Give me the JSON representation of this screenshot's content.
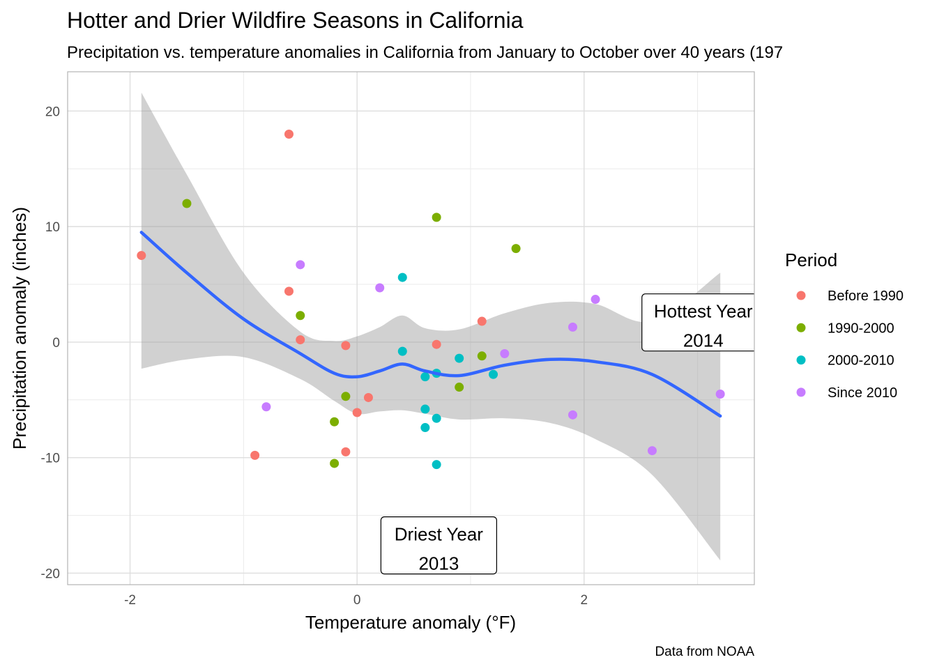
{
  "chart_data": {
    "type": "scatter",
    "title": "Hotter and Drier Wildfire Seasons in California",
    "subtitle": "Precipitation vs. temperature anomalies in California from January to October over 40 years (197",
    "xlabel": "Temperature anomaly (°F)",
    "ylabel": "Precipitation anomaly (inches)",
    "caption": "Data from NOAA",
    "xlim": [
      -2.55,
      3.5
    ],
    "ylim": [
      -21.0,
      23.4
    ],
    "x_ticks": [
      -2,
      0,
      2
    ],
    "y_ticks": [
      -20,
      -10,
      0,
      10,
      20
    ],
    "grid": true,
    "legend": {
      "title": "Period",
      "position": "right",
      "entries": [
        {
          "label": "Before 1990",
          "color": "#F8766D"
        },
        {
          "label": "1990-2000",
          "color": "#7CAE00"
        },
        {
          "label": "2000-2010",
          "color": "#00BFC4"
        },
        {
          "label": "Since 2010",
          "color": "#C77CFF"
        }
      ]
    },
    "series": [
      {
        "name": "Before 1990",
        "color": "#F8766D",
        "points": [
          [
            -1.9,
            7.5
          ],
          [
            -0.6,
            18.0
          ],
          [
            -0.6,
            4.4
          ],
          [
            -0.5,
            0.2
          ],
          [
            -0.1,
            -0.3
          ],
          [
            -0.9,
            -9.8
          ],
          [
            -0.1,
            -9.5
          ],
          [
            0.0,
            -6.1
          ],
          [
            0.1,
            -4.8
          ],
          [
            0.7,
            -0.2
          ],
          [
            1.1,
            1.8
          ]
        ]
      },
      {
        "name": "1990-2000",
        "color": "#7CAE00",
        "points": [
          [
            -1.5,
            12.0
          ],
          [
            -0.5,
            2.3
          ],
          [
            -0.1,
            -4.7
          ],
          [
            -0.2,
            -6.9
          ],
          [
            -0.2,
            -10.5
          ],
          [
            0.7,
            10.8
          ],
          [
            1.4,
            8.1
          ],
          [
            1.1,
            -1.2
          ],
          [
            0.9,
            -3.9
          ]
        ]
      },
      {
        "name": "2000-2010",
        "color": "#00BFC4",
        "points": [
          [
            0.4,
            5.6
          ],
          [
            0.4,
            -0.8
          ],
          [
            0.6,
            -3.0
          ],
          [
            0.7,
            -2.7
          ],
          [
            0.6,
            -5.8
          ],
          [
            0.6,
            -7.4
          ],
          [
            0.7,
            -6.6
          ],
          [
            0.7,
            -10.6
          ],
          [
            0.9,
            -1.4
          ],
          [
            1.2,
            -2.8
          ]
        ]
      },
      {
        "name": "Since 2010",
        "color": "#C77CFF",
        "points": [
          [
            -0.5,
            6.7
          ],
          [
            -0.8,
            -5.6
          ],
          [
            0.2,
            4.7
          ],
          [
            1.3,
            -1.0
          ],
          [
            1.9,
            1.3
          ],
          [
            2.1,
            3.7
          ],
          [
            1.9,
            -6.3
          ],
          [
            2.6,
            -9.4
          ],
          [
            3.2,
            -4.5
          ]
        ]
      }
    ],
    "smooth": {
      "color": "#3366FF",
      "band_color": "#999999",
      "x": [
        -1.9,
        -1.5,
        -1.0,
        -0.5,
        -0.2,
        0.0,
        0.2,
        0.4,
        0.6,
        0.9,
        1.3,
        1.7,
        2.1,
        2.6,
        3.2
      ],
      "y": [
        9.5,
        6.0,
        2.0,
        -1.0,
        -2.7,
        -3.0,
        -2.5,
        -1.9,
        -2.5,
        -2.9,
        -2.0,
        -1.5,
        -1.7,
        -2.8,
        -6.4
      ],
      "lower": [
        -2.3,
        -1.5,
        -1.3,
        -3.2,
        -5.1,
        -6.2,
        -6.0,
        -5.9,
        -6.2,
        -6.7,
        -6.6,
        -7.0,
        -8.4,
        -11.5,
        -18.9
      ],
      "upper": [
        21.6,
        14.5,
        6.0,
        0.9,
        0.1,
        0.5,
        1.3,
        2.3,
        1.2,
        1.1,
        2.5,
        3.4,
        3.3,
        1.8,
        6.0
      ]
    },
    "annotations": [
      {
        "x": 0.72,
        "y": -17.6,
        "line1": "Driest Year",
        "line2": "2013"
      },
      {
        "x": 3.05,
        "y": 1.7,
        "line1": "Hottest Year",
        "line2": "2014"
      }
    ]
  }
}
